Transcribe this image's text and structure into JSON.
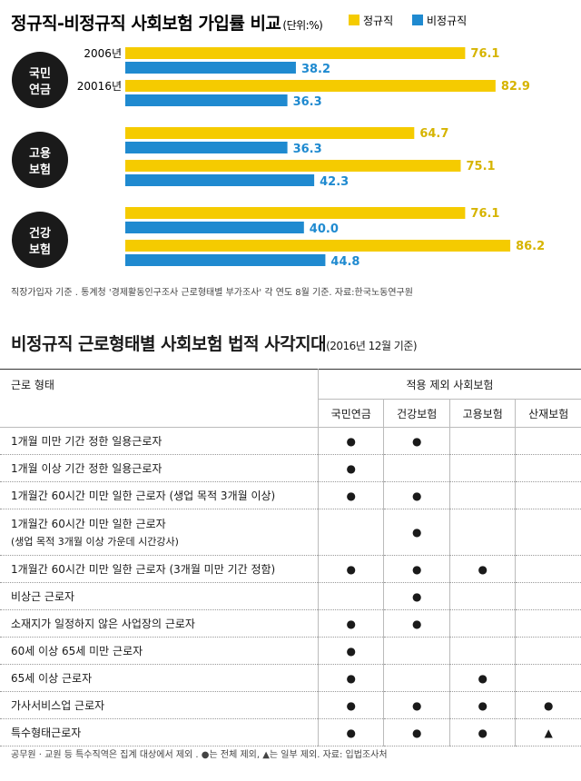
{
  "chart_data": {
    "type": "bar",
    "orientation": "horizontal",
    "title": "정규직-비정규직 사회보험 가입률 비교",
    "unit_label": "(단위:%)",
    "legend": [
      {
        "name": "정규직",
        "color": "#f5cb00"
      },
      {
        "name": "비정규직",
        "color": "#1f8ad0"
      }
    ],
    "groups": [
      {
        "label": "국민\n연금",
        "rows": [
          {
            "year": "2006년",
            "regular": 76.1,
            "nonregular": 38.2
          },
          {
            "year": "20016년",
            "regular": 82.9,
            "nonregular": 36.3
          }
        ]
      },
      {
        "label": "고용\n보험",
        "rows": [
          {
            "year": "",
            "regular": 64.7,
            "nonregular": 36.3
          },
          {
            "year": "",
            "regular": 75.1,
            "nonregular": 42.3
          }
        ]
      },
      {
        "label": "건강\n보험",
        "rows": [
          {
            "year": "",
            "regular": 76.1,
            "nonregular": 40.0
          },
          {
            "year": "",
            "regular": 86.2,
            "nonregular": 44.8
          }
        ]
      }
    ],
    "note": "직장가입자 기준 . 통계청 '경제활동인구조사 근로형태별 부가조사' 각 연도 8월 기준. 자료:한국노동연구원"
  },
  "table": {
    "title": "비정규직 근로형태별 사회보험 법적 사각지대",
    "subtitle": "(2016년 12월 기준)",
    "col_header": "근로 형태",
    "group_header": "적용 제외 사회보험",
    "columns": [
      "국민연금",
      "건강보험",
      "고용보험",
      "산재보험"
    ],
    "rows": [
      {
        "label": "1개월 미만 기간 정한 일용근로자",
        "marks": [
          "●",
          "●",
          "",
          ""
        ]
      },
      {
        "label": "1개월 이상 기간 정한 일용근로자",
        "marks": [
          "●",
          "",
          "",
          ""
        ]
      },
      {
        "label": "1개월간 60시간 미만 일한 근로자 (생업 목적 3개월 이상)",
        "marks": [
          "●",
          "●",
          "",
          ""
        ]
      },
      {
        "label": "1개월간 60시간 미만 일한 근로자",
        "label2": "(생업 목적 3개월 이상 가운데 시간강사)",
        "marks": [
          "",
          "●",
          "",
          ""
        ]
      },
      {
        "label": "1개월간 60시간 미만 일한 근로자 (3개월 미만 기간 정함)",
        "marks": [
          "●",
          "●",
          "●",
          ""
        ]
      },
      {
        "label": "비상근 근로자",
        "marks": [
          "",
          "●",
          "",
          ""
        ]
      },
      {
        "label": "소재지가 일정하지 않은 사업장의 근로자",
        "marks": [
          "●",
          "●",
          "",
          ""
        ]
      },
      {
        "label": "60세 이상 65세 미만 근로자",
        "marks": [
          "●",
          "",
          "",
          ""
        ]
      },
      {
        "label": "65세 이상 근로자",
        "marks": [
          "●",
          "",
          "●",
          ""
        ]
      },
      {
        "label": "가사서비스업 근로자",
        "marks": [
          "●",
          "●",
          "●",
          "●"
        ]
      },
      {
        "label": "특수형태근로자",
        "marks": [
          "●",
          "●",
          "●",
          "▲"
        ]
      }
    ],
    "note": "공무원 · 교원 등 특수직역은 집계 대상에서 제외 . ●는 전체 제외, ▲는 일부 제외. 자료: 입법조사처"
  }
}
